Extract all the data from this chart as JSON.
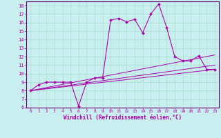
{
  "xlabel": "Windchill (Refroidissement éolien,°C)",
  "background_color": "#c8eef0",
  "line_color": "#aa00aa",
  "grid_color": "#aaddcc",
  "xlim": [
    -0.5,
    23.5
  ],
  "ylim": [
    6,
    18.5
  ],
  "yticks": [
    6,
    7,
    8,
    9,
    10,
    11,
    12,
    13,
    14,
    15,
    16,
    17,
    18
  ],
  "xticks": [
    0,
    1,
    2,
    3,
    4,
    5,
    6,
    7,
    8,
    9,
    10,
    11,
    12,
    13,
    14,
    15,
    16,
    17,
    18,
    19,
    20,
    21,
    22,
    23
  ],
  "line1_x": [
    0,
    1,
    2,
    3,
    4,
    5,
    6,
    7,
    8,
    9,
    10,
    11,
    12,
    13,
    14,
    15,
    16,
    17,
    18,
    19,
    20,
    21,
    22,
    23
  ],
  "line1_y": [
    8.0,
    8.7,
    9.0,
    9.0,
    9.0,
    9.0,
    6.2,
    9.0,
    9.5,
    9.5,
    16.3,
    16.5,
    16.1,
    16.4,
    14.8,
    17.0,
    18.2,
    15.4,
    12.0,
    11.5,
    11.5,
    12.1,
    10.5,
    10.5
  ],
  "line2_x": [
    0,
    23
  ],
  "line2_y": [
    8.0,
    11.0
  ],
  "line3_x": [
    0,
    23
  ],
  "line3_y": [
    8.0,
    10.5
  ],
  "line4_x": [
    0,
    23
  ],
  "line4_y": [
    8.0,
    12.2
  ]
}
